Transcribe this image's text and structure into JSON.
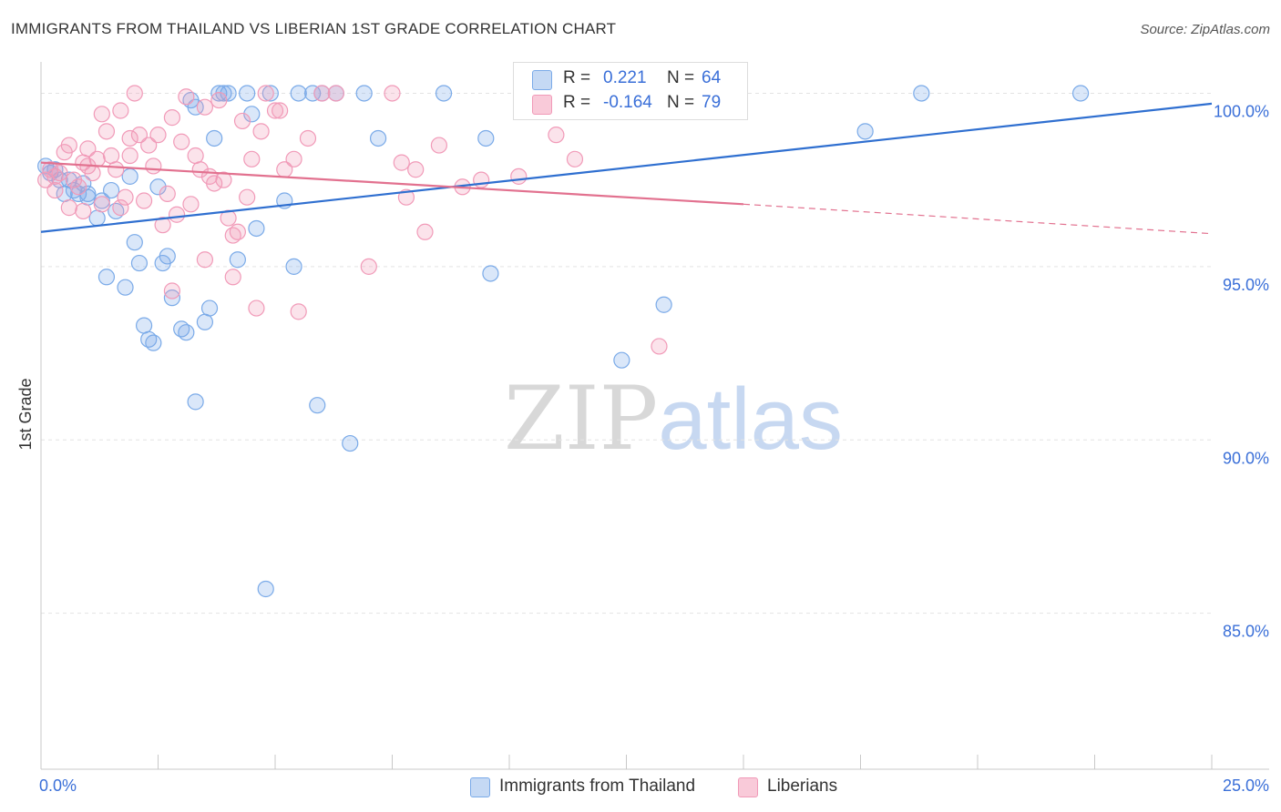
{
  "header": {
    "title": "IMMIGRANTS FROM THAILAND VS LIBERIAN 1ST GRADE CORRELATION CHART",
    "source": "Source: ZipAtlas.com"
  },
  "watermark": {
    "zip": "ZIP",
    "atlas": "atlas"
  },
  "legend": {
    "rows": [
      {
        "r_label": "R =",
        "r_value": "0.221",
        "n_label": "N =",
        "n_value": "64",
        "color": "#7aaae8"
      },
      {
        "r_label": "R =",
        "r_value": "-0.164",
        "n_label": "N =",
        "n_value": "79",
        "color": "#f19ab8"
      }
    ],
    "items": [
      {
        "label": "Immigrants from Thailand",
        "color": "#7aaae8"
      },
      {
        "label": "Liberians",
        "color": "#f19ab8"
      }
    ]
  },
  "chart_data": {
    "type": "scatter",
    "title": "IMMIGRANTS FROM THAILAND VS LIBERIAN 1ST GRADE CORRELATION CHART",
    "xlabel": "",
    "ylabel": "1st Grade",
    "xlim": [
      0,
      25
    ],
    "ylim": [
      80.5,
      100.8
    ],
    "x_tick_labels": [
      "0.0%",
      "25.0%"
    ],
    "y_ticks": [
      100,
      95,
      90,
      85
    ],
    "y_tick_labels": [
      "100.0%",
      "95.0%",
      "90.0%",
      "85.0%"
    ],
    "grid": true,
    "series": [
      {
        "name": "Immigrants from Thailand",
        "color": "#7aaae8",
        "line_color": "#2f6fd0",
        "R": 0.221,
        "N": 64,
        "trend": {
          "x": [
            0,
            25
          ],
          "y": [
            96.0,
            99.7
          ]
        },
        "points": [
          [
            0.1,
            97.9
          ],
          [
            0.2,
            97.7
          ],
          [
            0.3,
            97.8
          ],
          [
            0.4,
            97.5
          ],
          [
            0.5,
            97.1
          ],
          [
            0.6,
            97.5
          ],
          [
            0.7,
            97.2
          ],
          [
            0.8,
            97.1
          ],
          [
            0.9,
            97.4
          ],
          [
            1.0,
            97.0
          ],
          [
            1.2,
            96.4
          ],
          [
            1.3,
            96.9
          ],
          [
            1.5,
            97.2
          ],
          [
            1.6,
            96.6
          ],
          [
            1.9,
            97.6
          ],
          [
            2.0,
            95.7
          ],
          [
            2.1,
            95.1
          ],
          [
            2.2,
            93.3
          ],
          [
            2.3,
            92.9
          ],
          [
            2.5,
            97.3
          ],
          [
            2.6,
            95.1
          ],
          [
            2.7,
            95.3
          ],
          [
            2.8,
            94.1
          ],
          [
            3.0,
            93.2
          ],
          [
            3.1,
            93.1
          ],
          [
            3.2,
            99.8
          ],
          [
            3.3,
            99.6
          ],
          [
            3.5,
            93.4
          ],
          [
            3.6,
            93.8
          ],
          [
            3.7,
            98.7
          ],
          [
            3.8,
            100.0
          ],
          [
            3.9,
            100.0
          ],
          [
            4.0,
            100.0
          ],
          [
            4.2,
            95.2
          ],
          [
            4.4,
            100.0
          ],
          [
            4.5,
            99.4
          ],
          [
            4.6,
            96.1
          ],
          [
            4.8,
            85.7
          ],
          [
            4.9,
            100.0
          ],
          [
            5.2,
            96.9
          ],
          [
            5.4,
            95.0
          ],
          [
            5.5,
            100.0
          ],
          [
            5.8,
            100.0
          ],
          [
            5.9,
            91.0
          ],
          [
            6.0,
            100.0
          ],
          [
            6.3,
            100.0
          ],
          [
            6.6,
            89.9
          ],
          [
            6.9,
            100.0
          ],
          [
            7.2,
            98.7
          ],
          [
            8.6,
            100.0
          ],
          [
            9.5,
            98.7
          ],
          [
            9.6,
            94.8
          ],
          [
            1.0,
            97.1
          ],
          [
            1.4,
            94.7
          ],
          [
            1.8,
            94.4
          ],
          [
            2.4,
            92.8
          ],
          [
            3.3,
            91.1
          ],
          [
            11.6,
            100.0
          ],
          [
            11.9,
            100.0
          ],
          [
            12.4,
            92.3
          ],
          [
            13.3,
            93.9
          ],
          [
            17.6,
            98.9
          ],
          [
            18.8,
            100.0
          ],
          [
            22.2,
            100.0
          ]
        ]
      },
      {
        "name": "Liberians",
        "color": "#f19ab8",
        "line_color": "#e2718f",
        "R": -0.164,
        "N": 79,
        "trend": {
          "x": [
            0,
            15
          ],
          "y": [
            98.0,
            96.8
          ]
        },
        "trend_dashed": {
          "x": [
            15,
            25
          ],
          "y": [
            96.8,
            95.95
          ]
        },
        "points": [
          [
            0.1,
            97.5
          ],
          [
            0.2,
            97.8
          ],
          [
            0.3,
            97.6
          ],
          [
            0.4,
            97.7
          ],
          [
            0.5,
            98.3
          ],
          [
            0.6,
            98.5
          ],
          [
            0.7,
            97.5
          ],
          [
            0.8,
            97.3
          ],
          [
            0.9,
            98.0
          ],
          [
            1.0,
            98.4
          ],
          [
            1.1,
            97.7
          ],
          [
            1.2,
            98.1
          ],
          [
            1.3,
            99.4
          ],
          [
            1.4,
            98.9
          ],
          [
            1.5,
            98.2
          ],
          [
            1.6,
            97.8
          ],
          [
            1.7,
            99.5
          ],
          [
            1.8,
            97.0
          ],
          [
            1.9,
            98.7
          ],
          [
            2.0,
            100.0
          ],
          [
            2.1,
            98.8
          ],
          [
            2.2,
            96.9
          ],
          [
            2.3,
            98.5
          ],
          [
            2.4,
            97.9
          ],
          [
            2.5,
            98.8
          ],
          [
            2.6,
            96.2
          ],
          [
            2.7,
            97.1
          ],
          [
            2.8,
            99.3
          ],
          [
            2.9,
            96.5
          ],
          [
            3.0,
            98.6
          ],
          [
            3.1,
            99.9
          ],
          [
            3.2,
            96.8
          ],
          [
            3.3,
            98.2
          ],
          [
            3.4,
            97.8
          ],
          [
            3.5,
            99.6
          ],
          [
            3.6,
            97.6
          ],
          [
            3.7,
            97.4
          ],
          [
            3.8,
            99.8
          ],
          [
            3.9,
            97.5
          ],
          [
            4.0,
            96.4
          ],
          [
            4.1,
            95.9
          ],
          [
            4.2,
            96.0
          ],
          [
            4.3,
            99.2
          ],
          [
            4.4,
            97.0
          ],
          [
            4.5,
            98.1
          ],
          [
            4.6,
            93.8
          ],
          [
            4.7,
            98.9
          ],
          [
            4.8,
            100.0
          ],
          [
            5.0,
            99.5
          ],
          [
            5.2,
            97.8
          ],
          [
            5.4,
            98.1
          ],
          [
            5.5,
            93.7
          ],
          [
            5.7,
            98.7
          ],
          [
            6.0,
            100.0
          ],
          [
            6.3,
            100.0
          ],
          [
            7.0,
            95.0
          ],
          [
            7.5,
            100.0
          ],
          [
            7.7,
            98.0
          ],
          [
            7.8,
            97.0
          ],
          [
            8.0,
            97.8
          ],
          [
            8.2,
            96.0
          ],
          [
            8.5,
            98.5
          ],
          [
            9.0,
            97.3
          ],
          [
            9.4,
            97.5
          ],
          [
            10.2,
            97.6
          ],
          [
            11.0,
            98.8
          ],
          [
            11.4,
            98.1
          ],
          [
            13.2,
            92.7
          ],
          [
            0.6,
            96.7
          ],
          [
            0.9,
            96.6
          ],
          [
            1.3,
            96.8
          ],
          [
            1.7,
            96.7
          ],
          [
            2.8,
            94.3
          ],
          [
            3.5,
            95.2
          ],
          [
            4.1,
            94.7
          ],
          [
            1.0,
            97.9
          ],
          [
            1.9,
            98.2
          ],
          [
            0.3,
            97.2
          ],
          [
            5.1,
            99.5
          ]
        ]
      }
    ]
  }
}
